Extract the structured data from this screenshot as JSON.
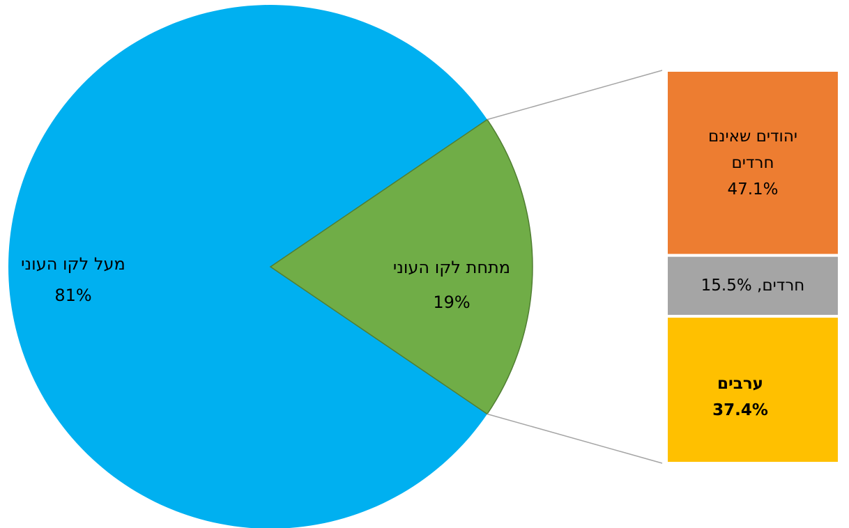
{
  "chart_data": {
    "type": "pie-of-bar",
    "pie": {
      "categories": [
        "מעל לקו העוני",
        "מתחת לקו העוני"
      ],
      "values": [
        81,
        19
      ],
      "value_labels": [
        "81%",
        "19%"
      ],
      "colors": [
        "#00b0f0",
        "#70ad47"
      ]
    },
    "bar": {
      "categories": [
        "יהודים שאינם חרדים",
        "חרדים",
        "ערבים"
      ],
      "values": [
        47.1,
        15.5,
        37.4
      ],
      "value_labels": [
        "47.1%",
        "חרדים, 15.5%",
        "37.4%"
      ],
      "colors": [
        "#ed7d31",
        "#a5a5a5",
        "#ffc000"
      ]
    }
  }
}
